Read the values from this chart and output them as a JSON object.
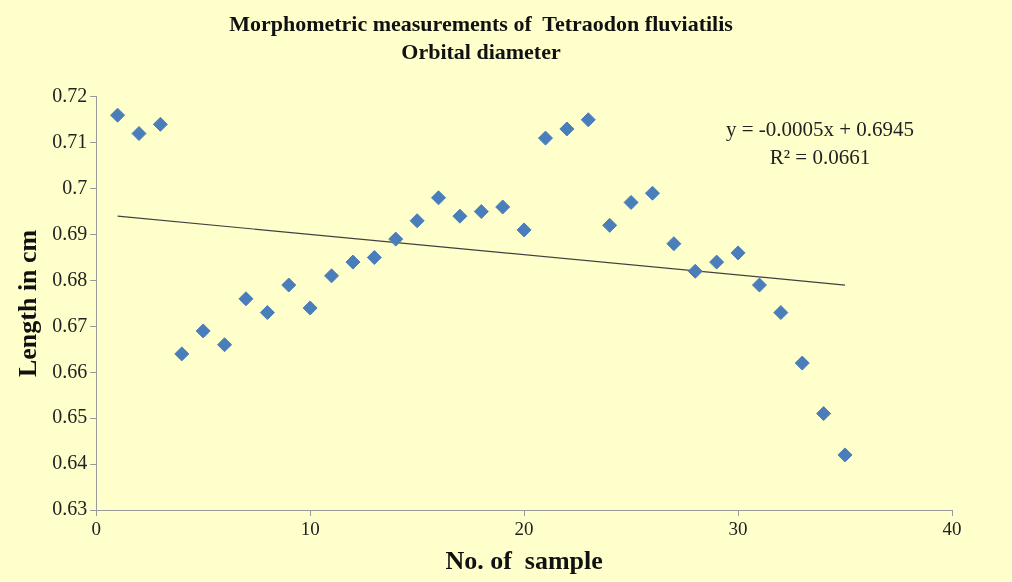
{
  "chart_data": {
    "type": "scatter",
    "title": "Morphometric measurements of  Tetraodon fluviatilis",
    "subtitle": "Orbital diameter",
    "xlabel": "No. of  sample",
    "ylabel": "Length in cm",
    "x": [
      1,
      2,
      3,
      4,
      5,
      6,
      7,
      8,
      9,
      10,
      11,
      12,
      13,
      14,
      15,
      16,
      17,
      18,
      19,
      20,
      21,
      22,
      23,
      24,
      25,
      26,
      27,
      28,
      29,
      30,
      31,
      32,
      33,
      34,
      35
    ],
    "series": [
      {
        "type": "scatter",
        "color": "#4a7ebb",
        "values": [
          0.716,
          0.712,
          0.714,
          0.664,
          0.669,
          0.666,
          0.676,
          0.673,
          0.679,
          0.674,
          0.681,
          0.684,
          0.685,
          0.689,
          0.693,
          0.698,
          0.694,
          0.695,
          0.696,
          0.691,
          0.711,
          0.713,
          0.715,
          0.692,
          0.697,
          0.699,
          0.688,
          0.682,
          0.684,
          0.686,
          0.679,
          0.673,
          0.662,
          0.651,
          0.642
        ]
      },
      {
        "type": "line",
        "color": "#404040",
        "x": [
          1,
          35
        ],
        "values": [
          0.694,
          0.679
        ],
        "marker": "none"
      }
    ],
    "annotations": [
      "y = -0.0005x + 0.6945",
      "R² = 0.0661"
    ],
    "xlim": [
      0,
      40
    ],
    "xticks": [
      0,
      10,
      20,
      30,
      40
    ],
    "ylim": [
      0.63,
      0.72
    ],
    "yticks": [
      0.63,
      0.64,
      0.65,
      0.66,
      0.67,
      0.68,
      0.69,
      0.7,
      0.71,
      0.72
    ],
    "grid": false,
    "legend": false,
    "marker": "diamond"
  }
}
